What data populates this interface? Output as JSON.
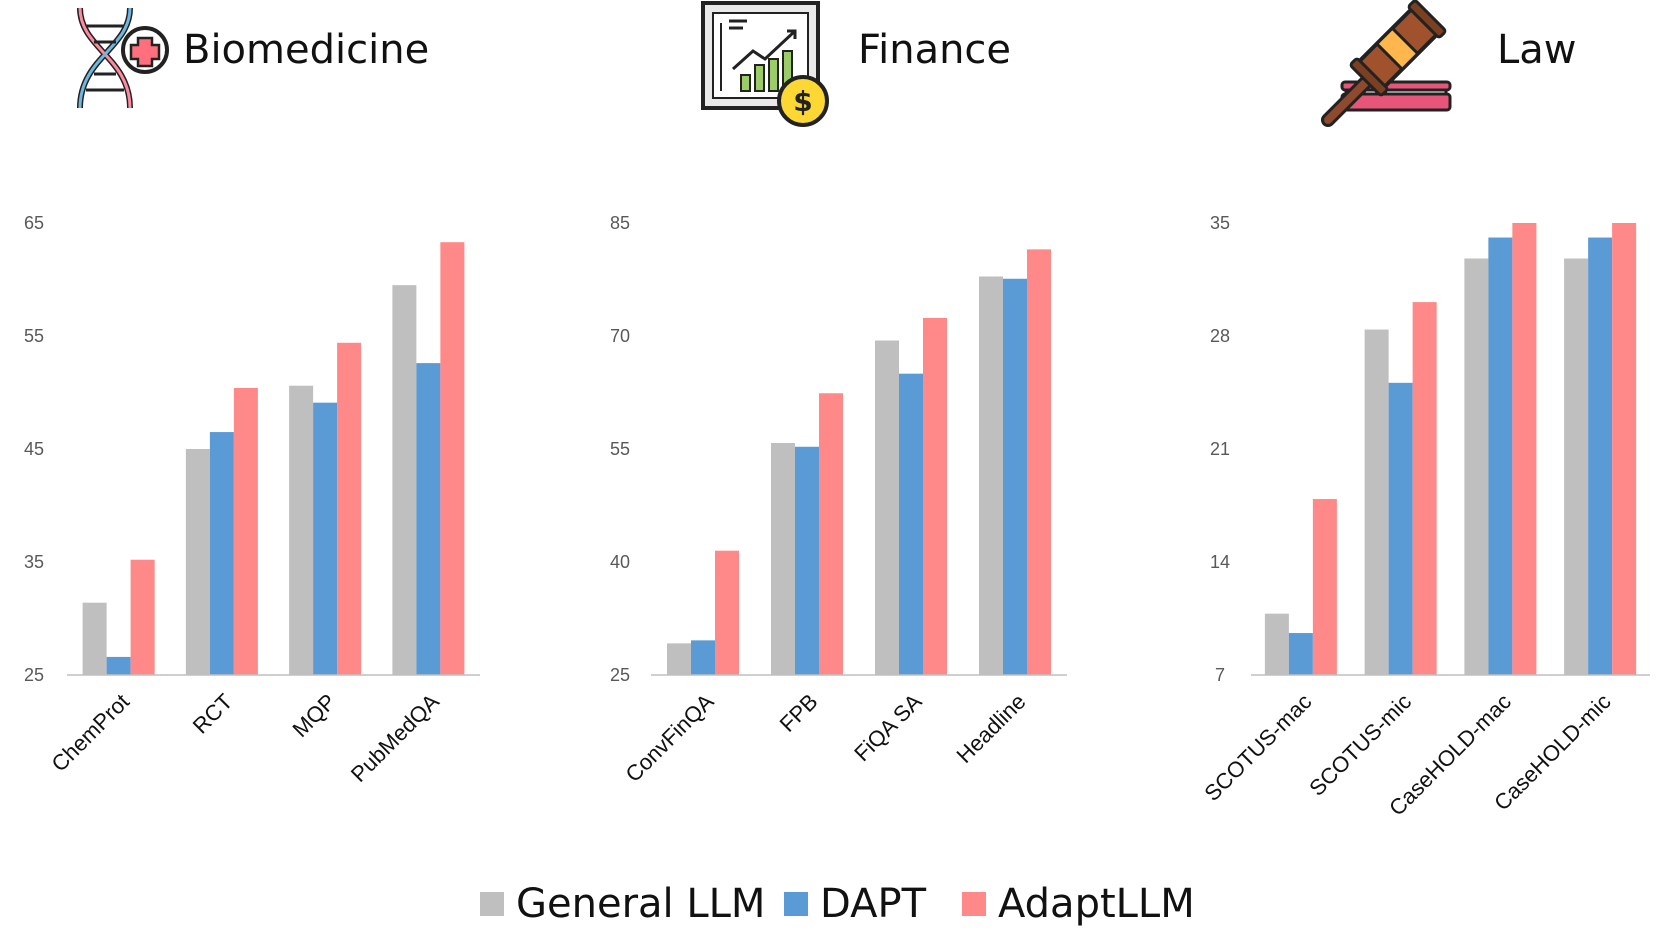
{
  "colors": {
    "general": "#bfbfbf",
    "dapt": "#5b9bd5",
    "adapt": "#ff8888",
    "axis": "#bfbfbf"
  },
  "legend": [
    {
      "key": "general",
      "label": "General LLM"
    },
    {
      "key": "dapt",
      "label": "DAPT"
    },
    {
      "key": "adapt",
      "label": "AdaptLLM"
    }
  ],
  "chart_data": [
    {
      "type": "bar",
      "title": "Biomedicine",
      "icon": "dna-medical-icon",
      "categories": [
        "ChemProt",
        "RCT",
        "MQP",
        "PubMedQA"
      ],
      "ylim": [
        25,
        65
      ],
      "yticks": [
        25,
        35,
        45,
        55,
        65
      ],
      "series": [
        {
          "key": "general",
          "name": "General LLM",
          "values": [
            31.4,
            45.0,
            50.6,
            59.5
          ]
        },
        {
          "key": "dapt",
          "name": "DAPT",
          "values": [
            26.6,
            46.5,
            49.1,
            52.6
          ]
        },
        {
          "key": "adapt",
          "name": "AdaptLLM",
          "values": [
            35.2,
            50.4,
            54.4,
            63.3
          ]
        }
      ]
    },
    {
      "type": "bar",
      "title": "Finance",
      "icon": "finance-chart-icon",
      "categories": [
        "ConvFinQA",
        "FPB",
        "FiQA SA",
        "Headline"
      ],
      "ylim": [
        25,
        85
      ],
      "yticks": [
        25,
        40,
        55,
        70,
        85
      ],
      "series": [
        {
          "key": "general",
          "name": "General LLM",
          "values": [
            29.2,
            55.8,
            69.4,
            77.9
          ]
        },
        {
          "key": "dapt",
          "name": "DAPT",
          "values": [
            29.6,
            55.3,
            65.0,
            77.6
          ]
        },
        {
          "key": "adapt",
          "name": "AdaptLLM",
          "values": [
            41.5,
            62.4,
            72.4,
            81.5
          ]
        }
      ]
    },
    {
      "type": "bar",
      "title": "Law",
      "icon": "gavel-book-icon",
      "categories": [
        "SCOTUS-mac",
        "SCOTUS-mic",
        "CaseHOLD-mac",
        "CaseHOLD-mic"
      ],
      "ylim": [
        7,
        35
      ],
      "yticks": [
        7,
        14,
        21,
        28,
        35
      ],
      "series": [
        {
          "key": "general",
          "name": "General LLM",
          "values": [
            10.8,
            28.4,
            32.8,
            32.8
          ]
        },
        {
          "key": "dapt",
          "name": "DAPT",
          "values": [
            9.6,
            25.1,
            34.1,
            34.1
          ]
        },
        {
          "key": "adapt",
          "name": "AdaptLLM",
          "values": [
            17.9,
            30.1,
            35.0,
            35.0
          ]
        }
      ]
    }
  ]
}
